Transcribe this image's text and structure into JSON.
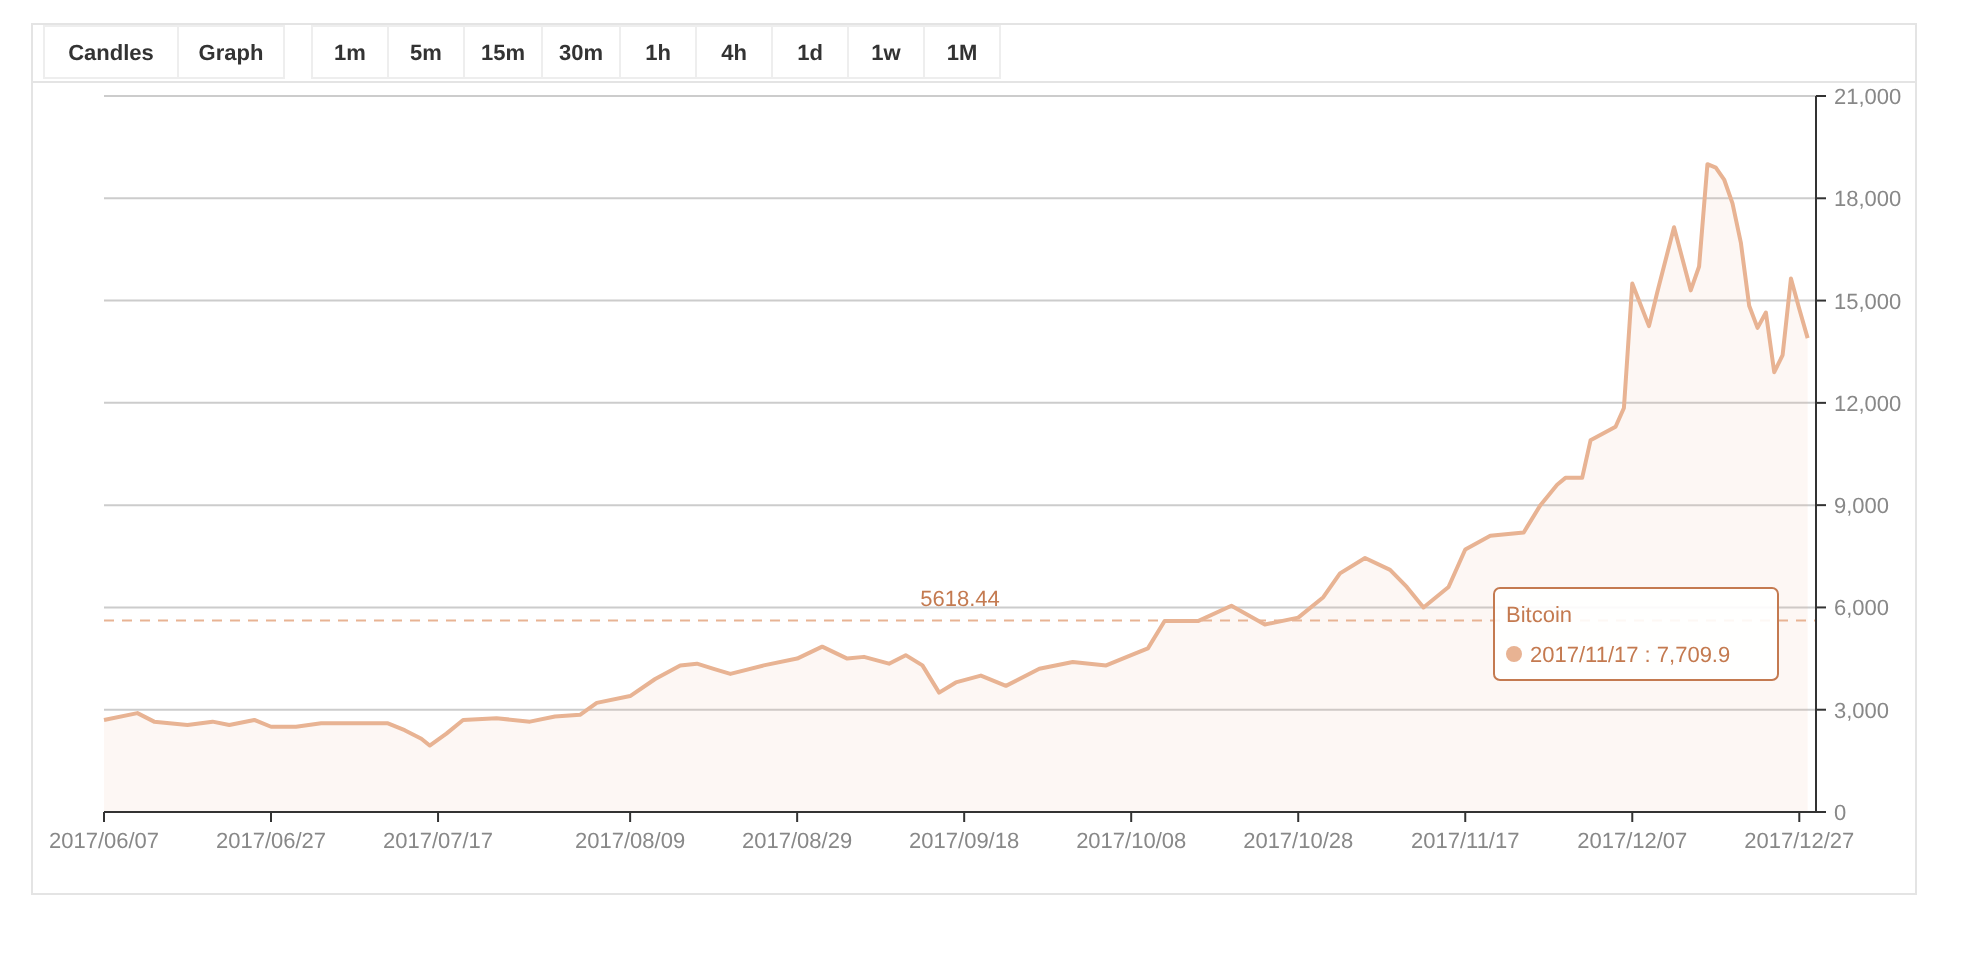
{
  "chart_data": {
    "type": "area",
    "annotations": [
      "Candles",
      "Graph",
      "1m",
      "5m",
      "15m",
      "30m",
      "1h",
      "4h",
      "1d",
      "1w",
      "1M",
      "2017/11/17 : 7,709.9"
    ],
    "x": [
      "2017-06-07",
      "2017-06-11",
      "2017-06-13",
      "2017-06-17",
      "2017-06-20",
      "2017-06-22",
      "2017-06-25",
      "2017-06-27",
      "2017-06-30",
      "2017-07-03",
      "2017-07-07",
      "2017-07-11",
      "2017-07-13",
      "2017-07-15",
      "2017-07-16",
      "2017-07-18",
      "2017-07-20",
      "2017-07-24",
      "2017-07-28",
      "2017-07-31",
      "2017-08-03",
      "2017-08-05",
      "2017-08-09",
      "2017-08-12",
      "2017-08-15",
      "2017-08-17",
      "2017-08-19",
      "2017-08-21",
      "2017-08-25",
      "2017-08-29",
      "2017-09-01",
      "2017-09-04",
      "2017-09-06",
      "2017-09-09",
      "2017-09-11",
      "2017-09-13",
      "2017-09-15",
      "2017-09-17",
      "2017-09-20",
      "2017-09-23",
      "2017-09-27",
      "2017-10-01",
      "2017-10-05",
      "2017-10-08",
      "2017-10-10",
      "2017-10-12",
      "2017-10-16",
      "2017-10-20",
      "2017-10-24",
      "2017-10-28",
      "2017-10-31",
      "2017-11-02",
      "2017-11-05",
      "2017-11-08",
      "2017-11-10",
      "2017-11-12",
      "2017-11-15",
      "2017-11-17",
      "2017-11-20",
      "2017-11-24",
      "2017-11-26",
      "2017-11-28",
      "2017-11-29",
      "2017-12-01",
      "2017-12-02",
      "2017-12-05",
      "2017-12-06",
      "2017-12-07",
      "2017-12-09",
      "2017-12-10",
      "2017-12-12",
      "2017-12-14",
      "2017-12-15",
      "2017-12-16",
      "2017-12-17",
      "2017-12-18",
      "2017-12-19",
      "2017-12-20",
      "2017-12-21",
      "2017-12-22",
      "2017-12-23",
      "2017-12-24",
      "2017-12-25",
      "2017-12-26",
      "2017-12-27",
      "2017-12-28"
    ],
    "series": [
      {
        "name": "Bitcoin",
        "color": "#e8b393",
        "values": [
          2700,
          2900,
          2650,
          2550,
          2650,
          2550,
          2700,
          2500,
          2500,
          2600,
          2600,
          2600,
          2400,
          2150,
          1950,
          2300,
          2700,
          2750,
          2650,
          2800,
          2850,
          3200,
          3400,
          3900,
          4300,
          4350,
          4200,
          4050,
          4300,
          4500,
          4850,
          4500,
          4550,
          4350,
          4600,
          4300,
          3500,
          3800,
          4000,
          3700,
          4200,
          4400,
          4300,
          4600,
          4800,
          5600,
          5600,
          6050,
          5500,
          5700,
          6300,
          7000,
          7450,
          7100,
          6600,
          6000,
          6600,
          7700,
          8100,
          8200,
          9000,
          9600,
          9800,
          9800,
          10900,
          11300,
          11850,
          15500,
          14250,
          15250,
          17150,
          15300,
          16000,
          19000,
          18900,
          18550,
          17850,
          16700,
          14850,
          14200,
          14650,
          12900,
          13400,
          15650,
          14750,
          13900
        ]
      }
    ],
    "xlim": [
      "2017-06-07",
      "2017-12-29"
    ],
    "xticks": [
      {
        "value": "2017-06-07",
        "label": "2017/06/07"
      },
      {
        "value": "2017-06-27",
        "label": "2017/06/27"
      },
      {
        "value": "2017-07-17",
        "label": "2017/07/17"
      },
      {
        "value": "2017-08-09",
        "label": "2017/08/09"
      },
      {
        "value": "2017-08-29",
        "label": "2017/08/29"
      },
      {
        "value": "2017-09-18",
        "label": "2017/09/18"
      },
      {
        "value": "2017-10-08",
        "label": "2017/10/08"
      },
      {
        "value": "2017-10-28",
        "label": "2017/10/28"
      },
      {
        "value": "2017-11-17",
        "label": "2017/11/17"
      },
      {
        "value": "2017-12-07",
        "label": "2017/12/07"
      },
      {
        "value": "2017-12-27",
        "label": "2017/12/27"
      }
    ],
    "ylim": [
      0,
      21000
    ],
    "yticks": [
      0,
      {
        "value": 3000,
        "label": "3,000"
      },
      {
        "value": 6000,
        "label": "6,000"
      },
      {
        "value": 9000,
        "label": "9,000"
      },
      {
        "value": 12000,
        "label": "12,000"
      },
      {
        "value": 15000,
        "label": "15,000"
      },
      {
        "value": 18000,
        "label": "18,000"
      },
      {
        "value": 21000,
        "label": "21,000"
      }
    ],
    "grid": "y",
    "marker": "none",
    "line_style": "solid",
    "ref_lines": [
      {
        "axis": "y",
        "value": 5618.44,
        "label": "5618.44",
        "color": "#e8b393",
        "line_style": "dashed"
      }
    ]
  }
}
